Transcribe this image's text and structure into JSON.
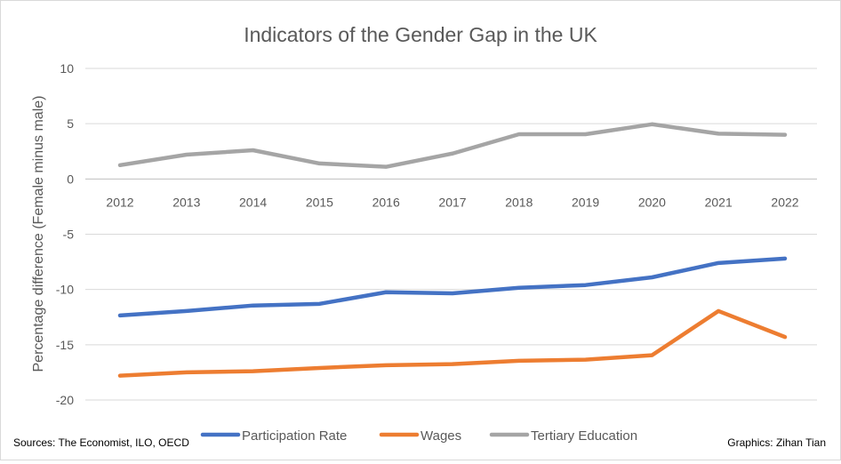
{
  "chart_data": {
    "type": "line",
    "title": "Indicators of the Gender Gap in the UK",
    "ylabel": "Percentage difference (Female minus male)",
    "xlabel": "",
    "ylim": [
      -20,
      10
    ],
    "yticks": [
      10,
      5,
      0,
      -5,
      -10,
      -15,
      -20
    ],
    "grid": true,
    "legend_position": "bottom",
    "categories": [
      "2012",
      "2013",
      "2014",
      "2015",
      "2016",
      "2017",
      "2018",
      "2019",
      "2020",
      "2021",
      "2022"
    ],
    "series": [
      {
        "name": "Participation Rate",
        "color": "#4472c4",
        "values": [
          -12.35,
          -11.95,
          -11.45,
          -11.3,
          -10.25,
          -10.35,
          -9.85,
          -9.6,
          -8.9,
          -7.6,
          -7.2
        ]
      },
      {
        "name": "Wages",
        "color": "#ed7d31",
        "values": [
          -17.8,
          -17.5,
          -17.4,
          -17.1,
          -16.85,
          -16.75,
          -16.45,
          -16.35,
          -15.95,
          -11.95,
          -14.3
        ]
      },
      {
        "name": "Tertiary Education",
        "color": "#a5a5a5",
        "values": [
          1.25,
          2.2,
          2.6,
          1.4,
          1.1,
          2.3,
          4.05,
          4.05,
          4.95,
          4.1,
          4.0
        ]
      }
    ],
    "annotations": {
      "sources": "Sources: The Economist, ILO, OECD",
      "credit": "Graphics: Zihan Tian"
    }
  }
}
